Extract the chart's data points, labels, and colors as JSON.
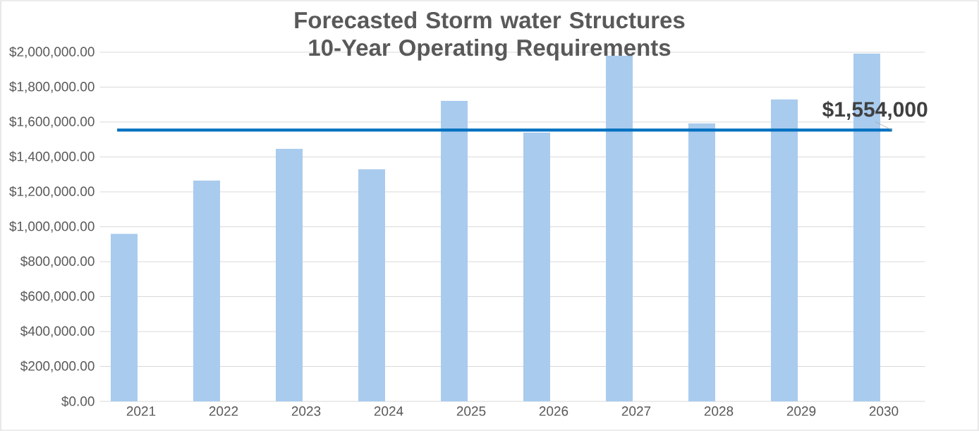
{
  "chart_data": {
    "type": "bar",
    "title": "Forecasted Storm water Structures 10-Year Operating Requirements",
    "categories": [
      "2021",
      "2022",
      "2023",
      "2024",
      "2025",
      "2026",
      "2027",
      "2028",
      "2029",
      "2030"
    ],
    "values": [
      960000,
      1265000,
      1446000,
      1329000,
      1721000,
      1539000,
      1980000,
      1592000,
      1729000,
      1992000
    ],
    "color": "#a9cbee",
    "ylim": [
      0,
      2000000
    ],
    "yticks": [
      {
        "value": 0,
        "label": "$0.00"
      },
      {
        "value": 200000,
        "label": "$200,000.00"
      },
      {
        "value": 400000,
        "label": "$400,000.00"
      },
      {
        "value": 600000,
        "label": "$600,000.00"
      },
      {
        "value": 800000,
        "label": "$800,000.00"
      },
      {
        "value": 1000000,
        "label": "$1,000,000.00"
      },
      {
        "value": 1200000,
        "label": "$1,200,000.00"
      },
      {
        "value": 1400000,
        "label": "$1,400,000.00"
      },
      {
        "value": 1600000,
        "label": "$1,600,000.00"
      },
      {
        "value": 1800000,
        "label": "$1,800,000.00"
      },
      {
        "value": 2000000,
        "label": "$2,000,000.00"
      }
    ],
    "grid": "y",
    "ref_lines": [
      {
        "axis": "y",
        "value": 1554000,
        "label": "$1,554,000",
        "color": "#0070c0"
      }
    ]
  }
}
